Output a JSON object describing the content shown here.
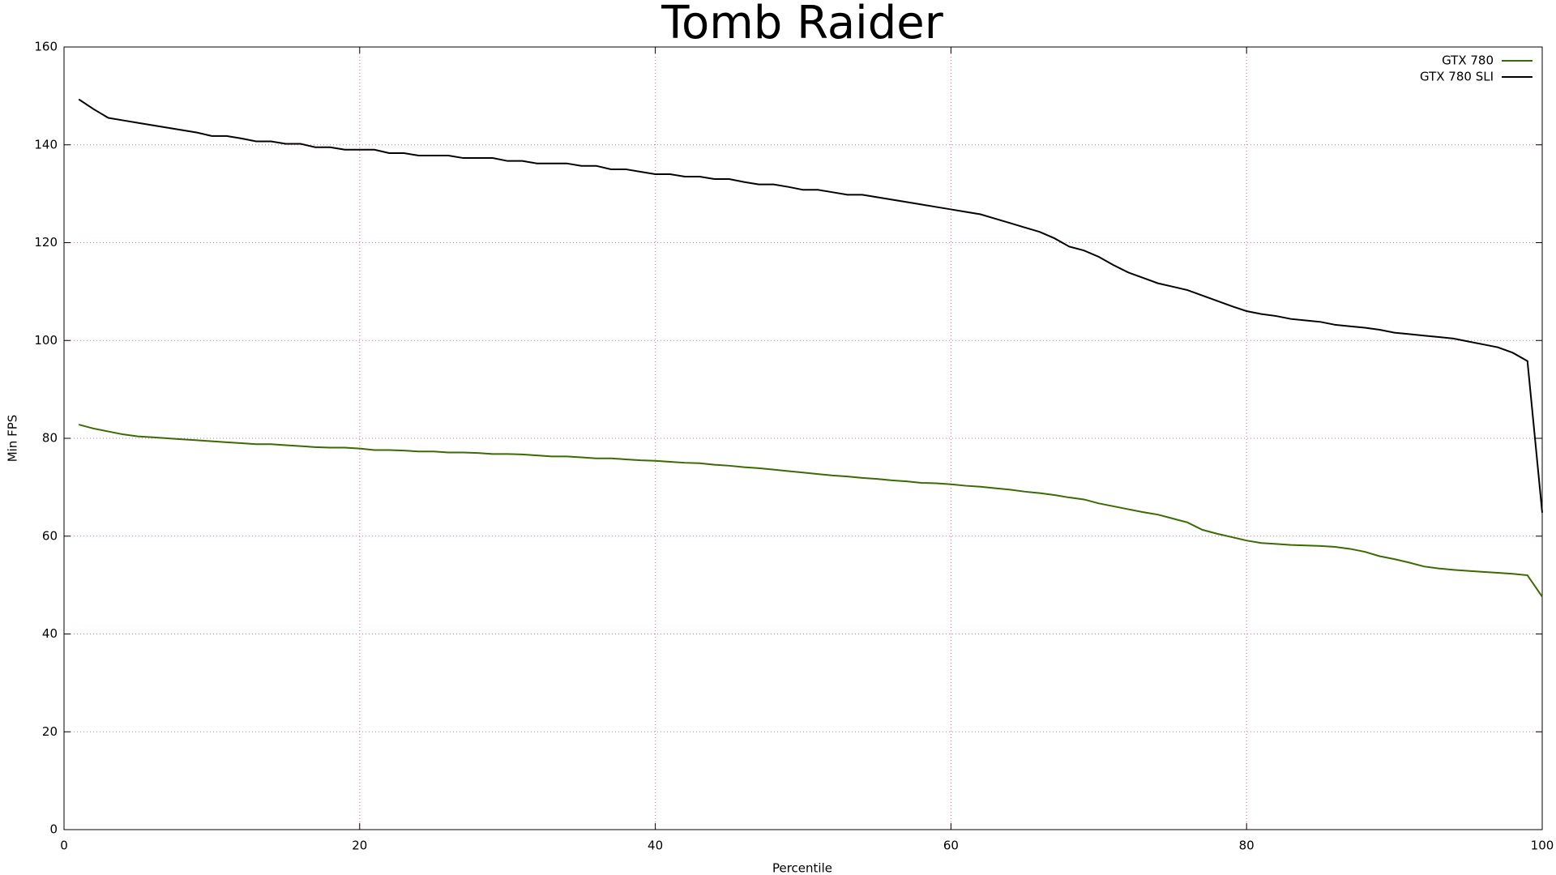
{
  "chart_data": {
    "type": "line",
    "title": "Tomb Raider",
    "x_label": "Percentile",
    "y_label": "Min FPS",
    "x": [
      1,
      2,
      3,
      4,
      5,
      6,
      7,
      8,
      9,
      10,
      11,
      12,
      13,
      14,
      15,
      16,
      17,
      18,
      19,
      20,
      21,
      22,
      23,
      24,
      25,
      26,
      27,
      28,
      29,
      30,
      31,
      32,
      33,
      34,
      35,
      36,
      37,
      38,
      39,
      40,
      41,
      42,
      43,
      44,
      45,
      46,
      47,
      48,
      49,
      50,
      51,
      52,
      53,
      54,
      55,
      56,
      57,
      58,
      59,
      60,
      61,
      62,
      63,
      64,
      65,
      66,
      67,
      68,
      69,
      70,
      71,
      72,
      73,
      74,
      75,
      76,
      77,
      78,
      79,
      80,
      81,
      82,
      83,
      84,
      85,
      86,
      87,
      88,
      89,
      90,
      91,
      92,
      93,
      94,
      95,
      96,
      97,
      98,
      99,
      100
    ],
    "series": [
      {
        "name": "GTX 780",
        "color": "#3a6b00",
        "values": [
          82.8,
          82,
          81.4,
          80.8,
          80.4,
          80.2,
          80,
          79.8,
          79.6,
          79.4,
          79.2,
          79,
          78.8,
          78.8,
          78.6,
          78.4,
          78.2,
          78.1,
          78.1,
          77.9,
          77.6,
          77.6,
          77.5,
          77.3,
          77.3,
          77.1,
          77.1,
          77,
          76.8,
          76.8,
          76.7,
          76.5,
          76.3,
          76.3,
          76.1,
          75.9,
          75.9,
          75.7,
          75.5,
          75.4,
          75.2,
          75,
          74.9,
          74.6,
          74.4,
          74.1,
          73.9,
          73.6,
          73.3,
          73,
          72.7,
          72.4,
          72.2,
          71.9,
          71.7,
          71.4,
          71.2,
          70.9,
          70.8,
          70.6,
          70.3,
          70.1,
          69.8,
          69.5,
          69.1,
          68.8,
          68.4,
          67.9,
          67.5,
          66.7,
          66.1,
          65.5,
          64.9,
          64.4,
          63.6,
          62.8,
          61.3,
          60.5,
          59.8,
          59.1,
          58.6,
          58.4,
          58.2,
          58.1,
          58,
          57.8,
          57.4,
          56.8,
          55.9,
          55.3,
          54.6,
          53.8,
          53.4,
          53.1,
          52.9,
          52.7,
          52.5,
          52.3,
          52,
          47.6
        ]
      },
      {
        "name": "GTX 780 SLI",
        "color": "#000000",
        "values": [
          149.3,
          147.3,
          145.5,
          145,
          144.5,
          144,
          143.5,
          143,
          142.5,
          141.8,
          141.8,
          141.3,
          140.7,
          140.7,
          140.2,
          140.2,
          139.5,
          139.5,
          139,
          139,
          139,
          138.3,
          138.3,
          137.8,
          137.8,
          137.8,
          137.3,
          137.3,
          137.3,
          136.7,
          136.7,
          136.2,
          136.2,
          136.2,
          135.7,
          135.7,
          135,
          135,
          134.5,
          134,
          134,
          133.5,
          133.5,
          133,
          133,
          132.4,
          131.9,
          131.9,
          131.4,
          130.8,
          130.8,
          130.3,
          129.8,
          129.8,
          129.3,
          128.8,
          128.3,
          127.8,
          127.3,
          126.8,
          126.3,
          125.8,
          124.9,
          124,
          123.1,
          122.2,
          120.9,
          119.2,
          118.4,
          117.1,
          115.4,
          113.9,
          112.8,
          111.7,
          111,
          110.3,
          109.2,
          108.1,
          107,
          106,
          105.4,
          105,
          104.4,
          104.1,
          103.8,
          103.2,
          102.9,
          102.6,
          102.2,
          101.6,
          101.3,
          101,
          100.7,
          100.4,
          99.8,
          99.2,
          98.6,
          97.5,
          95.8,
          64.8
        ]
      }
    ],
    "xlim": [
      0,
      100
    ],
    "xticks": [
      0,
      20,
      40,
      60,
      80,
      100
    ],
    "ylim": [
      0,
      160
    ],
    "yticks": [
      0,
      20,
      40,
      60,
      80,
      100,
      120,
      140,
      160
    ],
    "grid": true,
    "grid_color": "#e07090",
    "legend": "top-right"
  }
}
